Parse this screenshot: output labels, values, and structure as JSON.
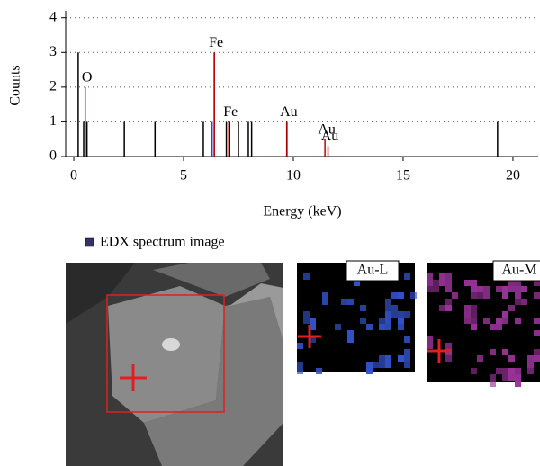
{
  "chart_data": {
    "type": "stem",
    "xlabel": "Energy (keV)",
    "ylabel": "Counts",
    "xlim": [
      -0.37,
      21.15
    ],
    "ylim": [
      0,
      4.2
    ],
    "xticks": [
      0,
      5,
      10,
      15,
      20
    ],
    "yticks": [
      0,
      1,
      2,
      3,
      4
    ],
    "grid": true,
    "series": [
      {
        "color": "#000000",
        "x": [
          0.2,
          0.45,
          0.6,
          2.3,
          3.7,
          5.9,
          6.4,
          6.95,
          7.1,
          7.5,
          7.95,
          8.1,
          9.7,
          19.3
        ],
        "values": [
          3,
          1,
          1,
          1,
          1,
          1,
          3,
          1,
          1,
          1,
          1,
          1,
          1,
          1
        ]
      },
      {
        "color": "#cc0000",
        "x": [
          0.52,
          6.4,
          7.06,
          9.71,
          11.44,
          11.58
        ],
        "values": [
          2,
          3,
          1,
          1,
          0.5,
          0.3
        ],
        "labels": [
          "O",
          "Fe",
          "Fe",
          "Au",
          "Au",
          "Au"
        ]
      },
      {
        "color": "#3344cc",
        "x": [
          6.3
        ],
        "values": [
          1
        ]
      }
    ]
  },
  "legend": {
    "label": "EDX spectrum image",
    "color": "#333366"
  },
  "maps": [
    {
      "label": "Au-L",
      "color": "#3355cc"
    },
    {
      "label": "Au-M",
      "color": "#993399"
    }
  ]
}
